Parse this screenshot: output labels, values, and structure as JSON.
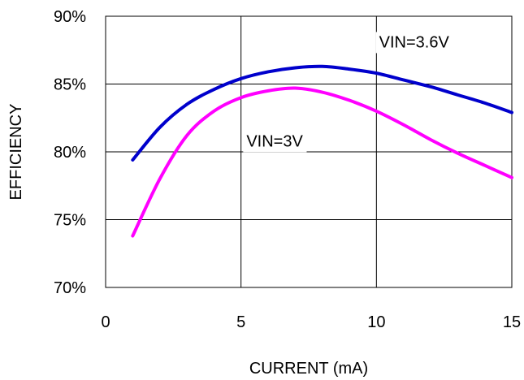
{
  "chart_data": {
    "type": "line",
    "title": "",
    "xlabel": "CURRENT (mA)",
    "ylabel": "EFFICIENCY",
    "xlim": [
      0,
      15
    ],
    "ylim": [
      70,
      90
    ],
    "xticks": [
      0,
      5,
      10,
      15
    ],
    "xtick_labels": [
      "0",
      "5",
      "10",
      "15"
    ],
    "yticks": [
      70,
      75,
      80,
      85,
      90
    ],
    "ytick_labels": [
      "70%",
      "75%",
      "80%",
      "85%",
      "90%"
    ],
    "grid": true,
    "legend": "none",
    "series": [
      {
        "color": "#0000cc",
        "x": [
          1,
          2,
          3,
          4,
          5,
          6,
          7,
          8,
          9,
          10,
          11,
          12,
          13,
          14,
          15
        ],
        "y": [
          79.4,
          81.8,
          83.5,
          84.6,
          85.4,
          85.9,
          86.2,
          86.3,
          86.1,
          85.8,
          85.3,
          84.8,
          84.2,
          83.6,
          82.9
        ]
      },
      {
        "color": "#ff00ff",
        "x": [
          1,
          2,
          3,
          4,
          5,
          6,
          7,
          8,
          9,
          10,
          11,
          12,
          13,
          14,
          15
        ],
        "y": [
          73.8,
          78.0,
          81.2,
          83.0,
          84.0,
          84.5,
          84.7,
          84.4,
          83.8,
          83.0,
          82.0,
          80.9,
          79.9,
          79.0,
          78.1
        ]
      }
    ],
    "annotations": [
      {
        "text": "VIN=3.6V",
        "x": 10.1,
        "y": 87.7,
        "series": 0
      },
      {
        "text": "VIN=3V",
        "x": 5.2,
        "y": 80.4,
        "series": 1
      }
    ]
  }
}
